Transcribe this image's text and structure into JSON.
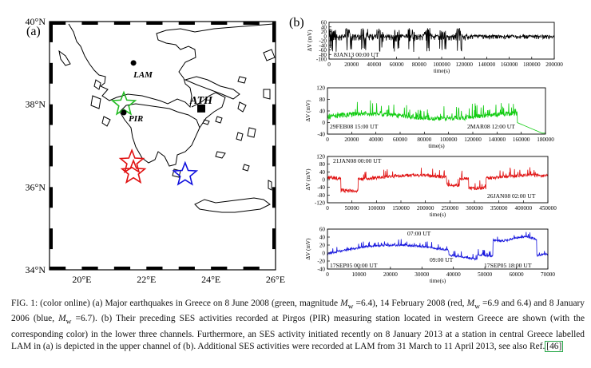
{
  "panel_a": {
    "label": "(a)",
    "lat_ticks": [
      {
        "value": 40,
        "label": "40°N"
      },
      {
        "value": 38,
        "label": "38°N"
      },
      {
        "value": 36,
        "label": "36°N"
      },
      {
        "value": 34,
        "label": "34°N"
      }
    ],
    "lon_ticks": [
      {
        "value": 20,
        "label": "20°E"
      },
      {
        "value": 22,
        "label": "22°E"
      },
      {
        "value": 24,
        "label": "24°E"
      },
      {
        "value": 26,
        "label": "26°E"
      }
    ],
    "lon_range": [
      19,
      26
    ],
    "lat_range": [
      34,
      40
    ],
    "stations": [
      {
        "id": "lam",
        "label": "LAM",
        "lon": 21.6,
        "lat": 39.0
      },
      {
        "id": "pir",
        "label": "PIR",
        "lon": 21.3,
        "lat": 37.8
      },
      {
        "id": "ath",
        "label": "ATH",
        "lon": 23.7,
        "lat": 37.9
      }
    ],
    "earthquakes": [
      {
        "id": "eq-green",
        "color": "#22bb22",
        "lon": 21.3,
        "lat": 38.0
      },
      {
        "id": "eq-red-1",
        "color": "#e01010",
        "lon": 21.55,
        "lat": 36.6
      },
      {
        "id": "eq-red-2",
        "color": "#e01010",
        "lon": 21.6,
        "lat": 36.35
      },
      {
        "id": "eq-blue",
        "color": "#1010dd",
        "lon": 23.2,
        "lat": 36.3
      }
    ]
  },
  "panel_b": {
    "label": "(b)",
    "channels": [
      {
        "id": "lam",
        "color": "#000000",
        "ylabel": "ΔV (mV)",
        "xlabel": "time(s)",
        "yticks": [
          60,
          40,
          20,
          0,
          -20,
          -40,
          -60,
          -80,
          -100
        ],
        "xticks": [
          0,
          20000,
          40000,
          60000,
          80000,
          100000,
          120000,
          140000,
          160000,
          180000,
          200000
        ],
        "xmax": 200000,
        "annotations": [
          {
            "text": "8JAN13 00:00 UT"
          }
        ]
      },
      {
        "id": "pir-green",
        "color": "#11cc11",
        "ylabel": "ΔV (mV)",
        "xlabel": "time(s)",
        "yticks": [
          120,
          80,
          40,
          0,
          -40
        ],
        "xticks": [
          0,
          20000,
          40000,
          60000,
          80000,
          100000,
          120000,
          140000,
          160000,
          180000
        ],
        "xmax": 180000,
        "annotations": [
          {
            "text": "29FEB08 15:00 UT"
          },
          {
            "text": "2MAR08 12:00 UT"
          }
        ]
      },
      {
        "id": "pir-red",
        "color": "#e01010",
        "ylabel": "ΔV (mV)",
        "xlabel": "time(s)",
        "yticks": [
          120,
          80,
          40,
          0,
          -40,
          -80,
          -120
        ],
        "xticks": [
          0,
          50000,
          100000,
          150000,
          200000,
          250000,
          300000,
          350000,
          400000,
          450000
        ],
        "xmax": 450000,
        "annotations": [
          {
            "text": "21JAN08 00:00 UT"
          },
          {
            "text": "26JAN08 02:00 UT"
          }
        ]
      },
      {
        "id": "pir-blue",
        "color": "#1515dd",
        "ylabel": "ΔV (mV)",
        "xlabel": "time(s)",
        "yticks": [
          60,
          40,
          20,
          0,
          -20,
          -40
        ],
        "xticks": [
          0,
          10000,
          20000,
          30000,
          40000,
          50000,
          60000,
          70000
        ],
        "xmax": 70000,
        "annotations": [
          {
            "text": "07:00 UT"
          },
          {
            "text": "09:00 UT"
          },
          {
            "text": "17SEP05 00:00 UT"
          },
          {
            "text": "17SEP05 18:00 UT"
          }
        ]
      }
    ]
  },
  "caption": {
    "fig_label": "FIG. 1:",
    "p1": " (color online) (a) Major earthquakes in Greece on 8 June 2008 (green, magnitude ",
    "mw": "M",
    "mw_sub": "w",
    "p2": " =6.4), 14 February 2008 (red, ",
    "p3": " =6.9 and 6.4) and 8 January 2006 (blue, ",
    "p4": " =6.7). (b) Their preceding SES activities recorded at Pirgos (PIR) measuring station located in western Greece are shown (with the corresponding color) in the lower three channels. Furthermore, an SES activity initiated recently on 8 January 2013 at a station in central Greece labelled LAM in (a) is depicted in the upper channel of (b). Additional SES activities were recorded at LAM from 31 March to 11 April 2013, see also Ref.",
    "ref": "[46]"
  }
}
